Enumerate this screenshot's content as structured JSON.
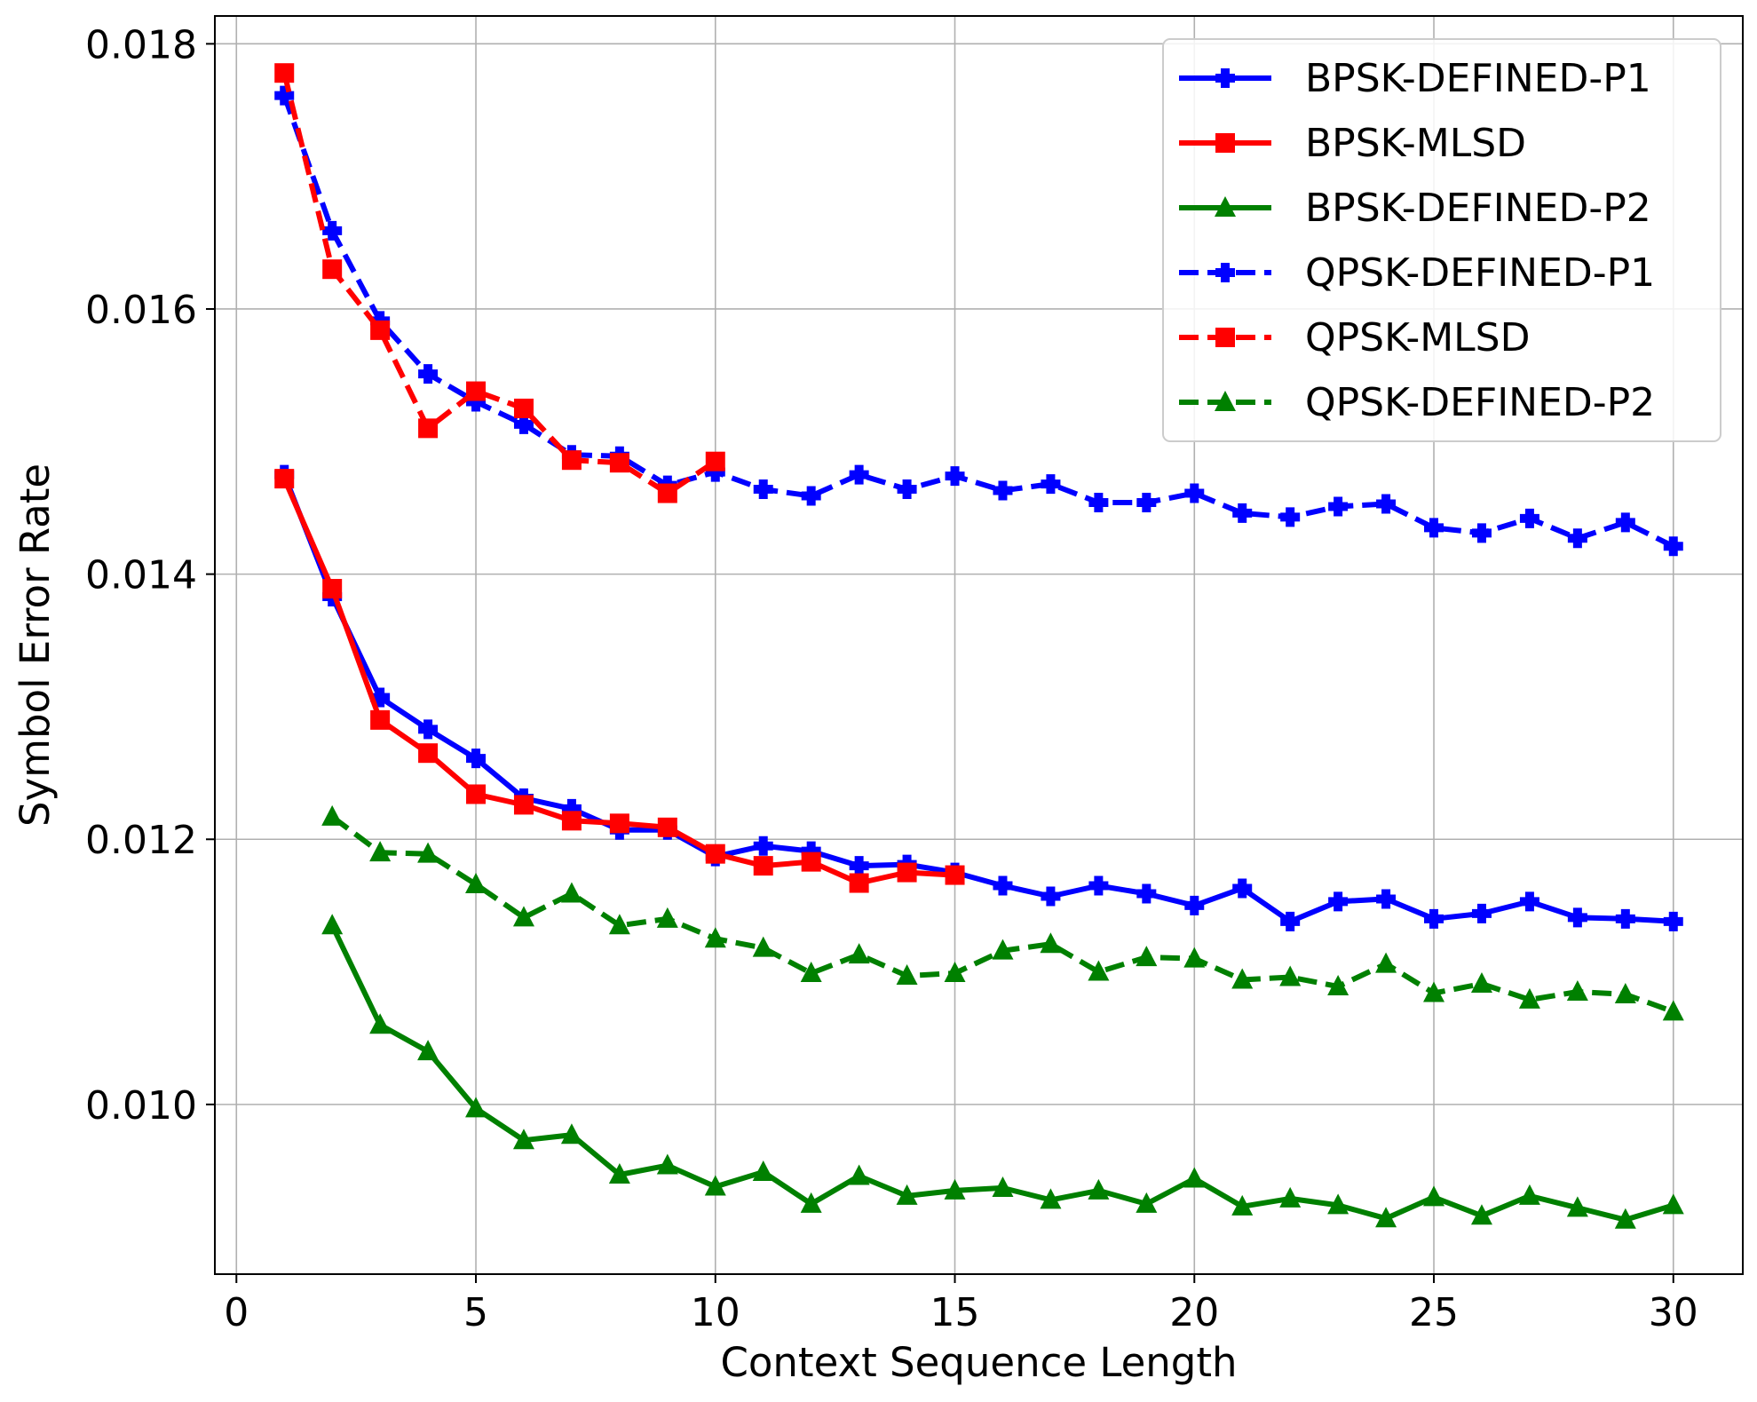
{
  "chart_data": {
    "type": "line",
    "title": "",
    "xlabel": "Context Sequence Length",
    "ylabel": "Symbol Error Rate",
    "xlim": [
      -0.45,
      31.45
    ],
    "ylim": [
      0.00872,
      0.01821
    ],
    "xticks": [
      0,
      5,
      10,
      15,
      20,
      25,
      30
    ],
    "xtick_labels": [
      "0",
      "5",
      "10",
      "15",
      "20",
      "25",
      "30"
    ],
    "yticks": [
      0.01,
      0.012,
      0.014,
      0.016,
      0.018
    ],
    "ytick_labels": [
      "0.010",
      "0.012",
      "0.014",
      "0.016",
      "0.018"
    ],
    "grid": true,
    "legend_position": "top-right",
    "series": [
      {
        "name": "BPSK-DEFINED-P1",
        "color": "#0000ff",
        "line_style": "solid",
        "marker": "plus",
        "x": [
          1,
          2,
          3,
          4,
          5,
          6,
          7,
          8,
          9,
          10,
          11,
          12,
          13,
          14,
          15,
          16,
          17,
          18,
          19,
          20,
          21,
          22,
          23,
          24,
          25,
          26,
          27,
          28,
          29,
          30
        ],
        "values": [
          0.01475,
          0.01383,
          0.01307,
          0.01283,
          0.01261,
          0.01231,
          0.01223,
          0.01207,
          0.01207,
          0.01187,
          0.01195,
          0.01191,
          0.0118,
          0.01181,
          0.01175,
          0.01165,
          0.01157,
          0.01165,
          0.01159,
          0.0115,
          0.01163,
          0.01138,
          0.01153,
          0.01155,
          0.0114,
          0.01144,
          0.01153,
          0.01141,
          0.0114,
          0.01138
        ]
      },
      {
        "name": "BPSK-MLSD",
        "color": "#ff0000",
        "line_style": "solid",
        "marker": "square",
        "x": [
          1,
          2,
          3,
          4,
          5,
          6,
          7,
          8,
          9,
          10,
          11,
          12,
          13,
          14,
          15
        ],
        "values": [
          0.01472,
          0.01389,
          0.0129,
          0.01265,
          0.01234,
          0.01226,
          0.01214,
          0.01212,
          0.01209,
          0.01189,
          0.0118,
          0.01183,
          0.01167,
          0.01175,
          0.01173
        ]
      },
      {
        "name": "BPSK-DEFINED-P2",
        "color": "#008000",
        "line_style": "solid",
        "marker": "triangle",
        "x": [
          2,
          3,
          4,
          5,
          6,
          7,
          8,
          9,
          10,
          11,
          12,
          13,
          14,
          15,
          16,
          17,
          18,
          19,
          20,
          21,
          22,
          23,
          24,
          25,
          26,
          27,
          28,
          29,
          30
        ],
        "values": [
          0.01135,
          0.0106,
          0.0104,
          0.00997,
          0.00973,
          0.00977,
          0.00947,
          0.00954,
          0.00938,
          0.00949,
          0.00925,
          0.00946,
          0.00931,
          0.00935,
          0.00937,
          0.00928,
          0.00935,
          0.00925,
          0.00944,
          0.00923,
          0.00929,
          0.00924,
          0.00914,
          0.0093,
          0.00916,
          0.00931,
          0.00922,
          0.00913,
          0.00924
        ]
      },
      {
        "name": "QPSK-DEFINED-P1",
        "color": "#0000ff",
        "line_style": "dashed",
        "marker": "plus",
        "x": [
          1,
          2,
          3,
          4,
          5,
          6,
          7,
          8,
          9,
          10,
          11,
          12,
          13,
          14,
          15,
          16,
          17,
          18,
          19,
          20,
          21,
          22,
          23,
          24,
          25,
          26,
          27,
          28,
          29,
          30
        ],
        "values": [
          0.01761,
          0.01659,
          0.01591,
          0.01551,
          0.0153,
          0.01513,
          0.0149,
          0.01489,
          0.01467,
          0.01477,
          0.01464,
          0.01459,
          0.01475,
          0.01464,
          0.01474,
          0.01463,
          0.01468,
          0.01454,
          0.01454,
          0.01461,
          0.01446,
          0.01443,
          0.01451,
          0.01453,
          0.01435,
          0.01431,
          0.01442,
          0.01427,
          0.01439,
          0.01421
        ]
      },
      {
        "name": "QPSK-MLSD",
        "color": "#ff0000",
        "line_style": "dashed",
        "marker": "square",
        "x": [
          1,
          2,
          3,
          4,
          5,
          6,
          7,
          8,
          9,
          10
        ],
        "values": [
          0.01778,
          0.0163,
          0.01584,
          0.0151,
          0.01538,
          0.01525,
          0.01486,
          0.01484,
          0.01461,
          0.01485
        ]
      },
      {
        "name": "QPSK-DEFINED-P2",
        "color": "#008000",
        "line_style": "dashed",
        "marker": "triangle",
        "x": [
          2,
          3,
          4,
          5,
          6,
          7,
          8,
          9,
          10,
          11,
          12,
          13,
          14,
          15,
          16,
          17,
          18,
          19,
          20,
          21,
          22,
          23,
          24,
          25,
          26,
          27,
          28,
          29,
          30
        ],
        "values": [
          0.01217,
          0.0119,
          0.01189,
          0.01166,
          0.01141,
          0.01159,
          0.01135,
          0.0114,
          0.01125,
          0.01118,
          0.01099,
          0.01113,
          0.01097,
          0.01099,
          0.01116,
          0.01121,
          0.011,
          0.01111,
          0.0111,
          0.01094,
          0.01096,
          0.01089,
          0.01106,
          0.01084,
          0.01091,
          0.01079,
          0.01085,
          0.01083,
          0.0107
        ]
      }
    ]
  }
}
